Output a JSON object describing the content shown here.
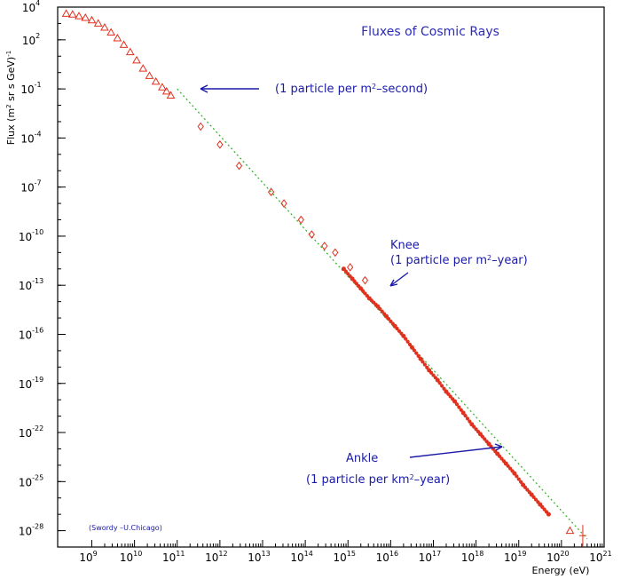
{
  "chart_data": {
    "type": "scatter",
    "title": "Fluxes of Cosmic Rays",
    "xlabel": "Energy (eV)",
    "ylabel_prefix": "Flux (m",
    "ylabel_sup": "2",
    "ylabel_mid": " sr s GeV)",
    "ylabel_sup2": "-1",
    "x_log": true,
    "y_log": true,
    "x_range_log10": [
      8.2,
      21
    ],
    "y_range_log10": [
      -29,
      4
    ],
    "x_ticks": [
      {
        "base": "10",
        "exp": "9"
      },
      {
        "base": "10",
        "exp": "10"
      },
      {
        "base": "10",
        "exp": "11"
      },
      {
        "base": "10",
        "exp": "12"
      },
      {
        "base": "10",
        "exp": "13"
      },
      {
        "base": "10",
        "exp": "14"
      },
      {
        "base": "10",
        "exp": "15"
      },
      {
        "base": "10",
        "exp": "16"
      },
      {
        "base": "10",
        "exp": "17"
      },
      {
        "base": "10",
        "exp": "18"
      },
      {
        "base": "10",
        "exp": "19"
      },
      {
        "base": "10",
        "exp": "20"
      },
      {
        "base": "10",
        "exp": "21"
      }
    ],
    "y_ticks": [
      {
        "base": "10",
        "exp": "4"
      },
      {
        "base": "10",
        "exp": "2"
      },
      {
        "base": "10",
        "exp": "-1"
      },
      {
        "base": "10",
        "exp": "-4"
      },
      {
        "base": "10",
        "exp": "-7"
      },
      {
        "base": "10",
        "exp": "-10"
      },
      {
        "base": "10",
        "exp": "-13"
      },
      {
        "base": "10",
        "exp": "-16"
      },
      {
        "base": "10",
        "exp": "-19"
      },
      {
        "base": "10",
        "exp": "-22"
      },
      {
        "base": "10",
        "exp": "-25"
      },
      {
        "base": "10",
        "exp": "-28"
      }
    ],
    "fit_line": {
      "x_log10": [
        11.0,
        20.6
      ],
      "y_log10": [
        -1.0,
        -28.5
      ]
    },
    "series": [
      {
        "marker": "triangle",
        "x_log10": [
          8.4,
          8.55,
          8.7,
          8.85,
          9.0,
          9.15,
          9.3,
          9.45,
          9.6,
          9.75,
          9.9,
          10.05,
          10.2,
          10.35,
          10.5,
          10.65,
          10.75,
          10.85
        ],
        "y_log10": [
          3.6,
          3.55,
          3.45,
          3.35,
          3.2,
          3.0,
          2.75,
          2.45,
          2.1,
          1.7,
          1.25,
          0.75,
          0.25,
          -0.2,
          -0.55,
          -0.9,
          -1.15,
          -1.4
        ]
      },
      {
        "marker": "diamond",
        "x_log10": [
          11.55,
          12.0,
          12.45,
          13.2,
          13.5,
          13.9,
          14.15,
          14.45,
          14.7,
          15.05,
          15.4
        ],
        "y_log10": [
          -3.3,
          -4.4,
          -5.7,
          -7.3,
          -8.0,
          -9.0,
          -9.9,
          -10.6,
          -11.0,
          -11.9,
          -12.7
        ]
      },
      {
        "marker": "dense",
        "x_log10": [
          14.9,
          15.1,
          15.3,
          15.5,
          15.7,
          15.9,
          16.1,
          16.3,
          16.5,
          16.7,
          16.9,
          17.1,
          17.3,
          17.5,
          17.7,
          17.9,
          18.1,
          18.3,
          18.5,
          18.7,
          18.9,
          19.1,
          19.3,
          19.5,
          19.7
        ],
        "y_log10": [
          -12.0,
          -12.6,
          -13.2,
          -13.8,
          -14.3,
          -14.9,
          -15.5,
          -16.1,
          -16.8,
          -17.5,
          -18.2,
          -18.8,
          -19.5,
          -20.1,
          -20.8,
          -21.5,
          -22.1,
          -22.7,
          -23.3,
          -23.9,
          -24.5,
          -25.2,
          -25.8,
          -26.4,
          -27.0
        ]
      },
      {
        "marker": "triangle",
        "x_log10": [
          20.2
        ],
        "y_log10": [
          -28.0
        ]
      },
      {
        "marker": "cross",
        "x_log10": [
          20.5
        ],
        "y_log10": [
          -28.3
        ]
      }
    ]
  },
  "annotations": {
    "one_per_m2_second_prefix": "(1 particle per m",
    "one_per_m2_second_sup": "2",
    "one_per_m2_second_suffix": "–second)",
    "knee_label": "Knee",
    "knee_prefix": "(1 particle per m",
    "knee_sup": "2",
    "knee_suffix": "–year)",
    "ankle_label": "Ankle",
    "ankle_prefix": "(1 particle per km",
    "ankle_sup": "2",
    "ankle_suffix": "–year)",
    "credit": "(Swordy –U.Chicago)"
  },
  "colors": {
    "data": "#e0301e",
    "fit": "#39b42f",
    "text_accent": "#1a1aa8"
  }
}
